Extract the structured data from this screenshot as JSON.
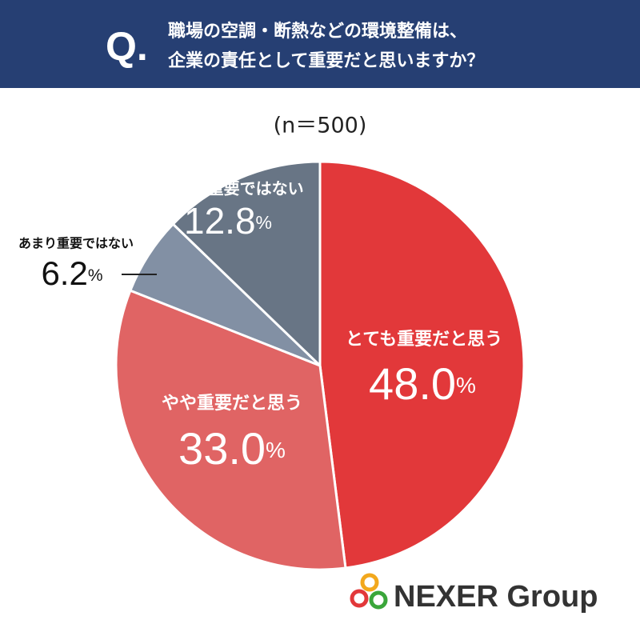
{
  "header": {
    "mark": "Q.",
    "lines": [
      "職場の空調・断熱などの環境整備は、",
      "企業の責任として重要だと思いますか？"
    ]
  },
  "chart_data": {
    "type": "pie",
    "subtitle": "(n＝500)",
    "categories": [
      "とても重要だと思う",
      "やや重要だと思う",
      "あまり重要ではない",
      "まったく重要ではない"
    ],
    "values": [
      48.0,
      33.0,
      6.2,
      12.8
    ],
    "value_labels": [
      "48.0%",
      "33.0%",
      "6.2%",
      "12.8%"
    ],
    "colors": [
      "#e2383a",
      "#e06464",
      "#8290a4",
      "#687585"
    ]
  },
  "logo": "NEXER Group"
}
